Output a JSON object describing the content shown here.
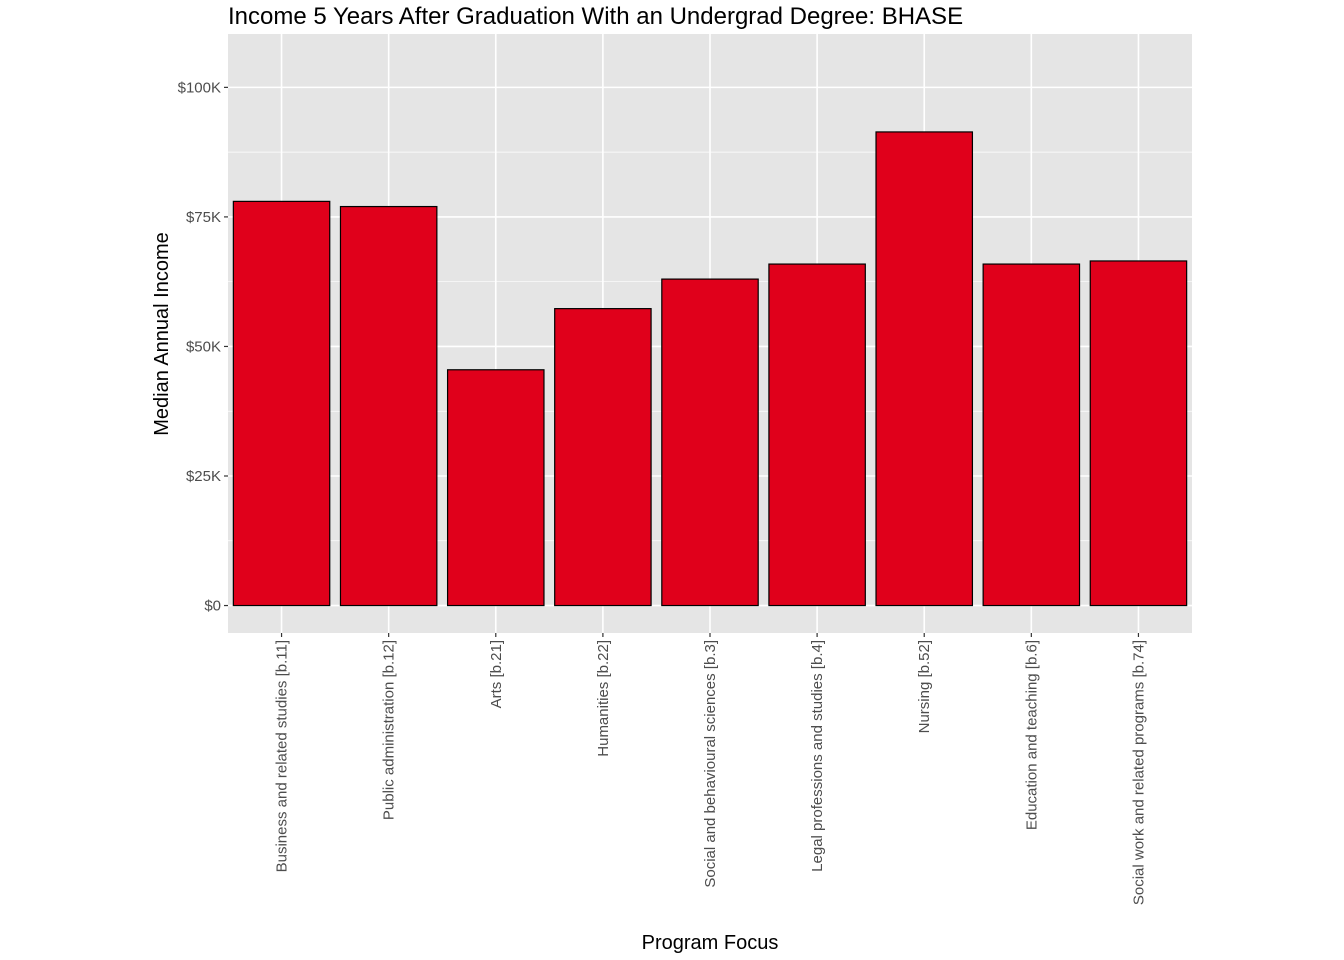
{
  "chart_data": {
    "type": "bar",
    "title": "Income 5 Years After Graduation With an Undergrad Degree: BHASE",
    "xlabel": "Program Focus",
    "ylabel": "Median Annual Income",
    "categories": [
      "Business and related studies [b.11]",
      "Public administration [b.12]",
      "Arts [b.21]",
      "Humanities [b.22]",
      "Social and behavioural sciences [b.3]",
      "Legal professions and studies [b.4]",
      "Nursing [b.52]",
      "Education and teaching [b.6]",
      "Social work and related programs [b.74]"
    ],
    "values": [
      78000,
      77000,
      45500,
      57300,
      63000,
      65900,
      91400,
      65900,
      66500
    ],
    "ylim": [
      -5300,
      110300
    ],
    "yticks": [
      0,
      25000,
      50000,
      75000,
      100000
    ],
    "ytick_labels": [
      "$0",
      "$25K",
      "$50K",
      "$75K",
      "$100K"
    ],
    "grid": true,
    "bar_color": "#e0001b",
    "panel_color": "#e5e5e5",
    "grid_color": "#ffffff"
  }
}
